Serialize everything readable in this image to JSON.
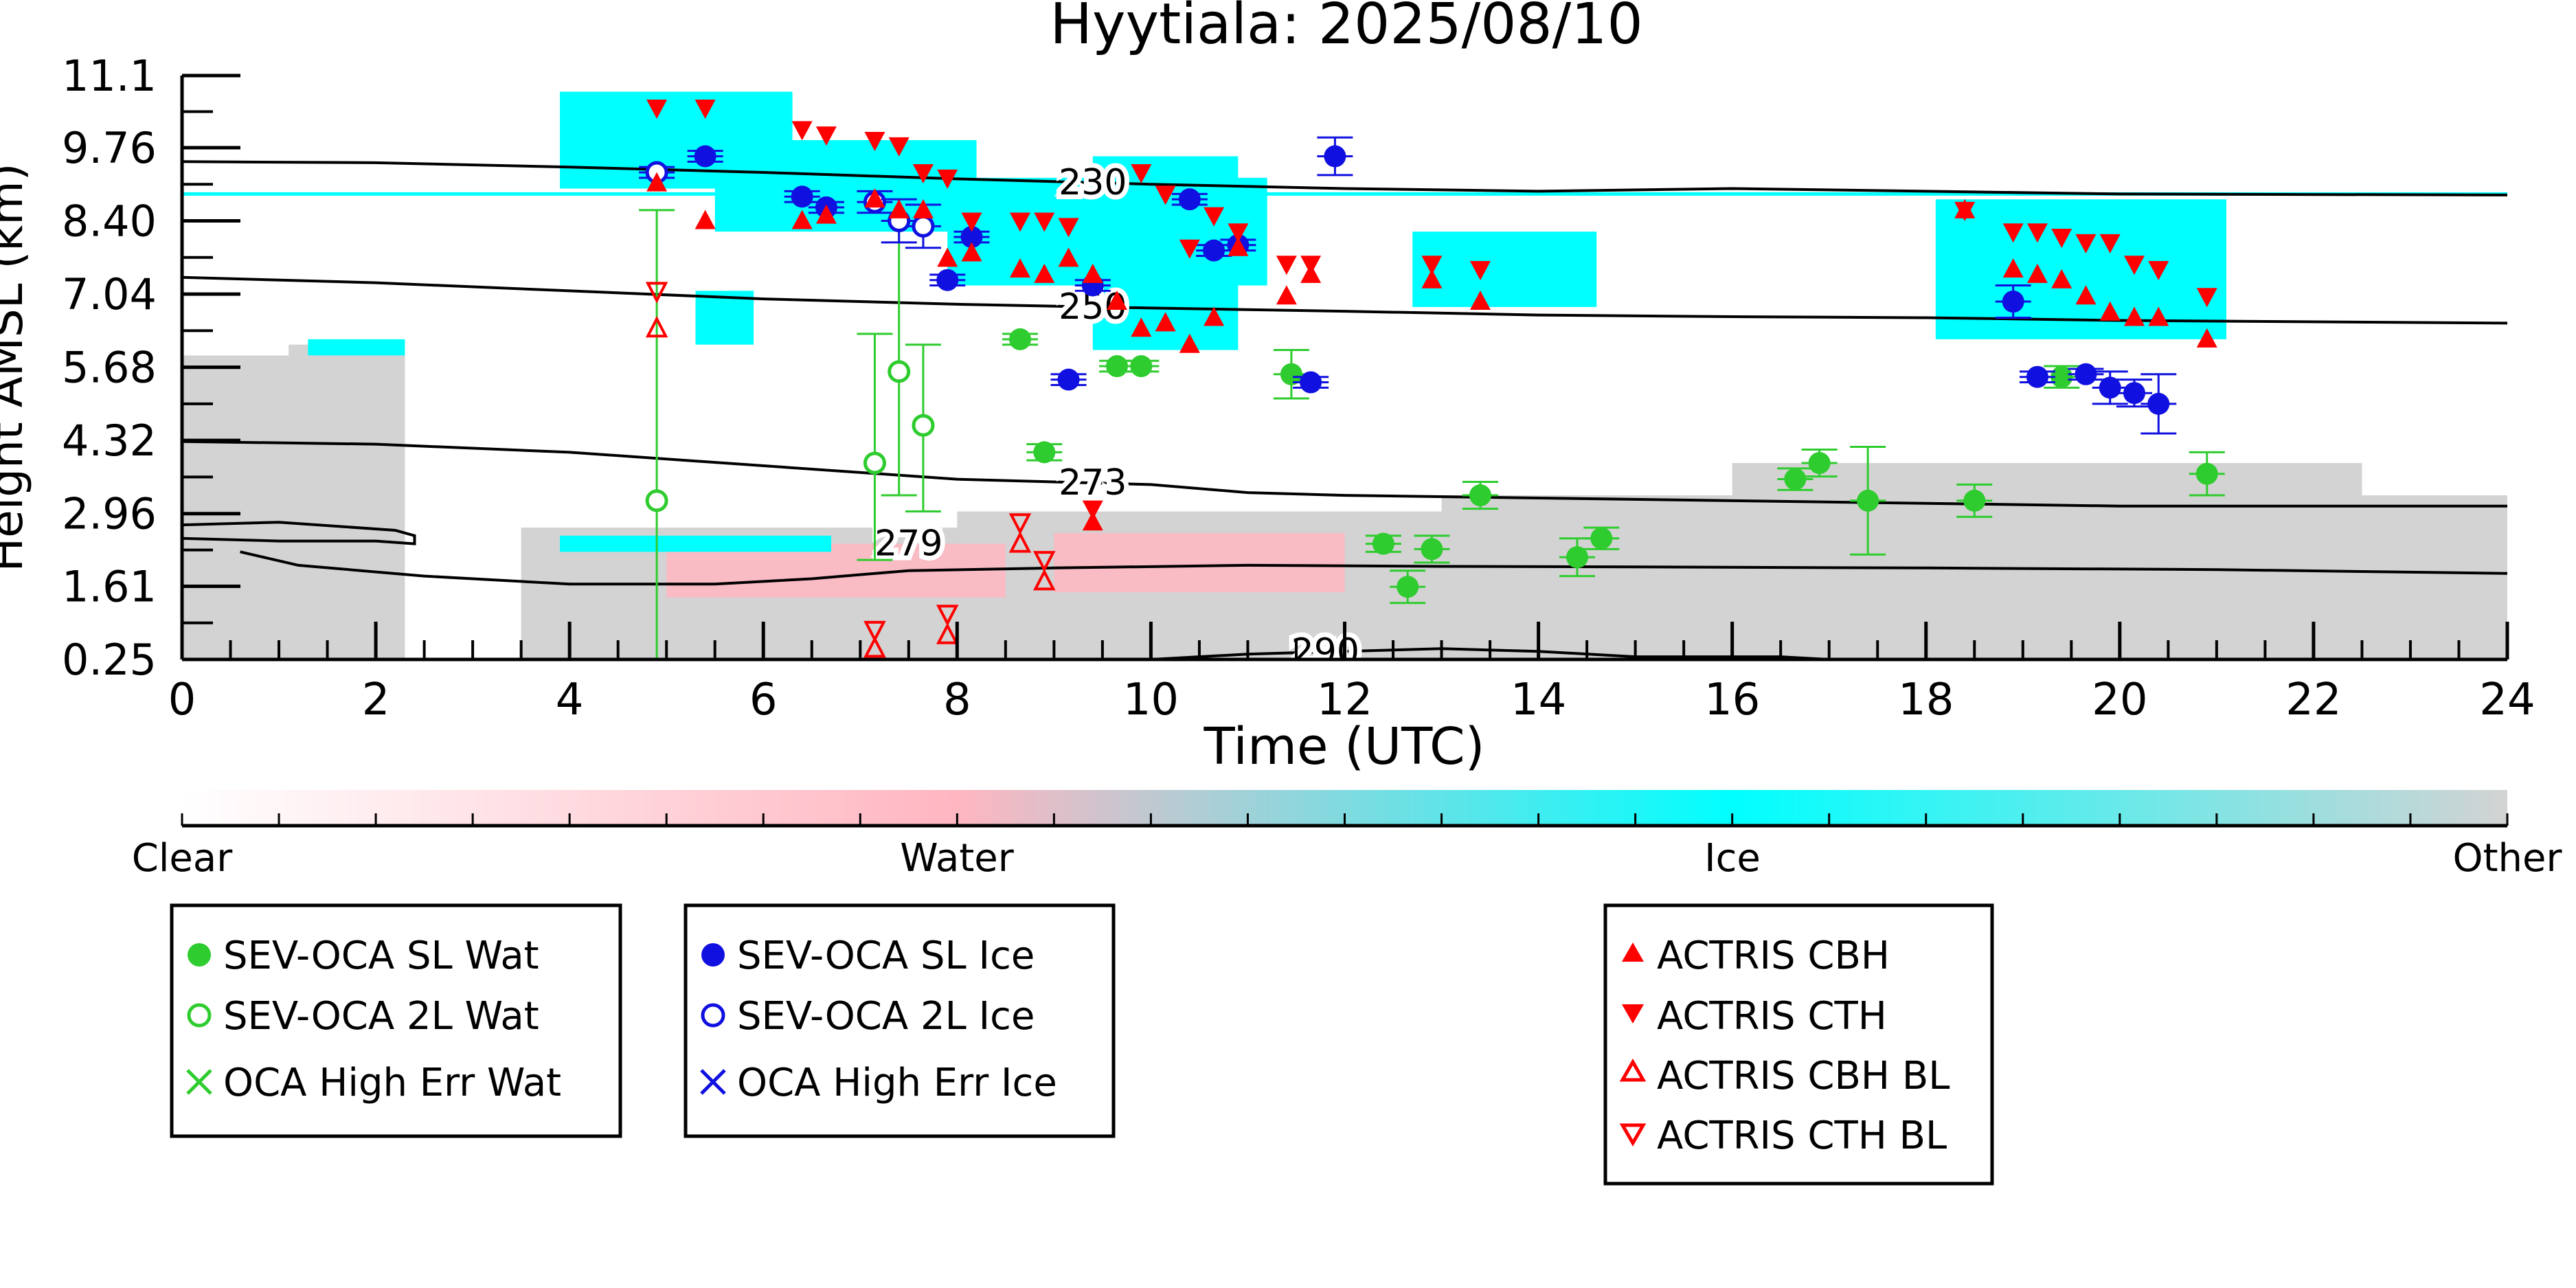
{
  "chart_data": {
    "type": "scatter",
    "title": "Hyytiala: 2025/08/10",
    "xlabel": "Time (UTC)",
    "ylabel": "Height AMSL (km)",
    "xlim": [
      0,
      24
    ],
    "ylim": [
      0.25,
      11.1
    ],
    "xticks": [
      "0",
      "2",
      "4",
      "6",
      "8",
      "10",
      "12",
      "14",
      "16",
      "18",
      "20",
      "22",
      "24"
    ],
    "yticks": [
      "0.25",
      "1.61",
      "2.96",
      "4.32",
      "5.68",
      "7.04",
      "8.40",
      "9.76",
      "11.1"
    ],
    "colorbar": {
      "labels": [
        "Clear",
        "Water",
        "Ice",
        "Other"
      ],
      "colors": {
        "clear": "#ffffff",
        "water": "#ffb6c1",
        "ice": "#00ffff",
        "other": "#d3d3d3"
      }
    },
    "background_regions": [
      {
        "class": "Other",
        "t0": 0.0,
        "t1": 2.3,
        "h0": 0.25,
        "h1": 5.9
      },
      {
        "class": "Other",
        "t0": 1.1,
        "t1": 2.3,
        "h0": 2.9,
        "h1": 6.1
      },
      {
        "class": "Ice",
        "t0": 1.3,
        "t1": 2.3,
        "h0": 5.9,
        "h1": 6.2
      },
      {
        "class": "Other",
        "t0": 3.5,
        "t1": 21.0,
        "h0": 0.25,
        "h1": 2.7
      },
      {
        "class": "Other",
        "t0": 8.0,
        "t1": 13.0,
        "h0": 0.25,
        "h1": 3.0
      },
      {
        "class": "Other",
        "t0": 13.0,
        "t1": 24.0,
        "h0": 0.25,
        "h1": 3.3
      },
      {
        "class": "Other",
        "t0": 16.0,
        "t1": 22.5,
        "h0": 2.0,
        "h1": 3.9
      },
      {
        "class": "Water",
        "t0": 5.0,
        "t1": 8.5,
        "h0": 1.4,
        "h1": 2.4
      },
      {
        "class": "Water",
        "t0": 9.0,
        "t1": 12.0,
        "h0": 1.5,
        "h1": 2.6
      },
      {
        "class": "Ice",
        "t0": 3.9,
        "t1": 6.7,
        "h0": 2.25,
        "h1": 2.55
      },
      {
        "class": "Ice",
        "t0": 3.9,
        "t1": 6.3,
        "h0": 9.0,
        "h1": 10.8
      },
      {
        "class": "Ice",
        "t0": 5.5,
        "t1": 8.2,
        "h0": 8.2,
        "h1": 9.9
      },
      {
        "class": "Ice",
        "t0": 7.9,
        "t1": 11.2,
        "h0": 7.2,
        "h1": 9.2
      },
      {
        "class": "Ice",
        "t0": 9.4,
        "t1": 10.9,
        "h0": 6.0,
        "h1": 9.6
      },
      {
        "class": "Ice",
        "t0": 5.3,
        "t1": 5.9,
        "h0": 6.1,
        "h1": 7.1
      },
      {
        "class": "Ice",
        "t0": 12.7,
        "t1": 14.6,
        "h0": 6.8,
        "h1": 8.2
      },
      {
        "class": "Ice",
        "t0": 18.1,
        "t1": 21.1,
        "h0": 6.2,
        "h1": 8.8
      }
    ],
    "ice_line": {
      "t0": 0.0,
      "t1": 24.0,
      "h": 8.9
    },
    "contours": [
      {
        "label": "230",
        "label_x": 9.4,
        "points": [
          [
            0,
            9.5
          ],
          [
            2,
            9.48
          ],
          [
            4,
            9.4
          ],
          [
            6,
            9.3
          ],
          [
            8,
            9.18
          ],
          [
            10,
            9.08
          ],
          [
            12,
            9.0
          ],
          [
            14,
            8.95
          ],
          [
            16,
            9.0
          ],
          [
            18,
            8.95
          ],
          [
            20,
            8.9
          ],
          [
            24,
            8.88
          ]
        ]
      },
      {
        "label": "250",
        "label_x": 9.4,
        "points": [
          [
            0,
            7.35
          ],
          [
            2,
            7.25
          ],
          [
            4,
            7.1
          ],
          [
            6,
            6.95
          ],
          [
            8,
            6.85
          ],
          [
            10,
            6.78
          ],
          [
            12,
            6.72
          ],
          [
            14,
            6.65
          ],
          [
            16,
            6.62
          ],
          [
            18,
            6.6
          ],
          [
            20,
            6.55
          ],
          [
            24,
            6.5
          ]
        ]
      },
      {
        "label": "273",
        "label_x": 9.4,
        "points": [
          [
            0,
            4.3
          ],
          [
            2,
            4.25
          ],
          [
            4,
            4.1
          ],
          [
            6,
            3.85
          ],
          [
            8,
            3.6
          ],
          [
            10,
            3.5
          ],
          [
            11,
            3.35
          ],
          [
            12,
            3.3
          ],
          [
            14,
            3.25
          ],
          [
            16,
            3.2
          ],
          [
            18,
            3.15
          ],
          [
            20,
            3.1
          ],
          [
            24,
            3.1
          ]
        ]
      },
      {
        "label": "279",
        "label_x": 7.5,
        "points": [
          [
            0,
            2.5
          ],
          [
            1,
            2.45
          ],
          [
            2,
            2.45
          ],
          [
            2.4,
            2.4
          ],
          [
            2.4,
            2.55
          ],
          [
            2.2,
            2.65
          ],
          [
            1.0,
            2.8
          ],
          [
            0,
            2.75
          ]
        ]
      },
      {
        "label": "",
        "label_x": 0,
        "points": [
          [
            0.6,
            2.25
          ],
          [
            1.2,
            2.0
          ],
          [
            2.5,
            1.8
          ],
          [
            4,
            1.65
          ],
          [
            5.5,
            1.65
          ],
          [
            6.5,
            1.75
          ],
          [
            7.5,
            1.9
          ],
          [
            9,
            1.95
          ],
          [
            11,
            2.0
          ],
          [
            13,
            1.98
          ],
          [
            15,
            1.97
          ],
          [
            18,
            1.95
          ],
          [
            21,
            1.92
          ],
          [
            24,
            1.85
          ]
        ]
      },
      {
        "label": "290",
        "label_x": 11.8,
        "points": [
          [
            10,
            0.25
          ],
          [
            11,
            0.35
          ],
          [
            12,
            0.4
          ],
          [
            13,
            0.45
          ],
          [
            14,
            0.4
          ],
          [
            15,
            0.3
          ],
          [
            16.5,
            0.3
          ],
          [
            17,
            0.25
          ]
        ]
      }
    ],
    "series": [
      {
        "name": "SEV-OCA SL Wat",
        "marker": "filled-circle",
        "color": "#2ecc2e",
        "points": [
          {
            "x": 8.65,
            "y": 6.2,
            "err": 0.1
          },
          {
            "x": 8.9,
            "y": 4.1,
            "err": 0.15
          },
          {
            "x": 9.65,
            "y": 5.7,
            "err": 0.1
          },
          {
            "x": 9.9,
            "y": 5.7,
            "err": 0.1
          },
          {
            "x": 11.45,
            "y": 5.55,
            "err": 0.45
          },
          {
            "x": 12.4,
            "y": 2.4,
            "err": 0.15
          },
          {
            "x": 12.65,
            "y": 1.6,
            "err": 0.3
          },
          {
            "x": 12.9,
            "y": 2.3,
            "err": 0.25
          },
          {
            "x": 13.4,
            "y": 3.3,
            "err": 0.25
          },
          {
            "x": 14.4,
            "y": 2.15,
            "err": 0.35
          },
          {
            "x": 14.65,
            "y": 2.5,
            "err": 0.2
          },
          {
            "x": 16.65,
            "y": 3.6,
            "err": 0.2
          },
          {
            "x": 16.9,
            "y": 3.9,
            "err": 0.25
          },
          {
            "x": 17.4,
            "y": 3.2,
            "err": 1.0
          },
          {
            "x": 18.5,
            "y": 3.2,
            "err": 0.3
          },
          {
            "x": 19.4,
            "y": 5.5,
            "err": 0.2
          },
          {
            "x": 20.9,
            "y": 3.7,
            "err": 0.4
          }
        ]
      },
      {
        "name": "SEV-OCA 2L Wat",
        "marker": "open-circle",
        "color": "#2ecc2e",
        "points": [
          {
            "x": 4.9,
            "y": 3.2,
            "low": 0.25,
            "high": 8.6
          },
          {
            "x": 7.15,
            "y": 3.9,
            "low": 2.1,
            "high": 6.3
          },
          {
            "x": 7.4,
            "y": 5.6,
            "low": 3.3,
            "high": 8.4
          },
          {
            "x": 7.65,
            "y": 4.6,
            "low": 3.0,
            "high": 6.1
          }
        ]
      },
      {
        "name": "OCA High Err Wat",
        "marker": "x",
        "color": "#2ecc2e",
        "points": []
      },
      {
        "name": "SEV-OCA SL Ice",
        "marker": "filled-circle",
        "color": "#1010e0",
        "points": [
          {
            "x": 5.4,
            "y": 9.6,
            "err": 0.1
          },
          {
            "x": 6.4,
            "y": 8.85,
            "err": 0.1
          },
          {
            "x": 6.65,
            "y": 8.65,
            "err": 0.1
          },
          {
            "x": 7.9,
            "y": 7.3,
            "err": 0.1
          },
          {
            "x": 8.15,
            "y": 8.1,
            "err": 0.1
          },
          {
            "x": 9.15,
            "y": 5.45,
            "err": 0.1
          },
          {
            "x": 9.4,
            "y": 7.2,
            "err": 0.1
          },
          {
            "x": 10.4,
            "y": 8.8,
            "err": 0.1
          },
          {
            "x": 10.65,
            "y": 7.85,
            "err": 0.1
          },
          {
            "x": 10.9,
            "y": 7.95,
            "err": 0.1
          },
          {
            "x": 11.65,
            "y": 5.4,
            "err": 0.1
          },
          {
            "x": 11.9,
            "y": 9.6,
            "err": 0.35
          },
          {
            "x": 18.9,
            "y": 6.9,
            "err": 0.3
          },
          {
            "x": 19.15,
            "y": 5.5,
            "err": 0.1
          },
          {
            "x": 19.65,
            "y": 5.55,
            "err": 0.1
          },
          {
            "x": 19.9,
            "y": 5.3,
            "err": 0.3
          },
          {
            "x": 20.15,
            "y": 5.2,
            "err": 0.25
          },
          {
            "x": 20.4,
            "y": 5.0,
            "err": 0.55
          }
        ]
      },
      {
        "name": "SEV-OCA 2L Ice",
        "marker": "open-circle",
        "color": "#1010e0",
        "points": [
          {
            "x": 4.9,
            "y": 9.3,
            "err": 0.1
          },
          {
            "x": 7.15,
            "y": 8.75,
            "err": 0.2
          },
          {
            "x": 7.4,
            "y": 8.4,
            "err": 0.4
          },
          {
            "x": 7.65,
            "y": 8.3,
            "err": 0.4
          }
        ]
      },
      {
        "name": "OCA High Err Ice",
        "marker": "x",
        "color": "#1010e0",
        "points": []
      },
      {
        "name": "ACTRIS CBH",
        "marker": "filled-triangle-up",
        "color": "#ff0000",
        "points": [
          {
            "x": 4.9,
            "y": 9.1
          },
          {
            "x": 5.4,
            "y": 8.4
          },
          {
            "x": 6.4,
            "y": 8.4
          },
          {
            "x": 6.65,
            "y": 8.5
          },
          {
            "x": 7.15,
            "y": 8.8
          },
          {
            "x": 7.4,
            "y": 8.6
          },
          {
            "x": 7.65,
            "y": 8.6
          },
          {
            "x": 7.9,
            "y": 7.7
          },
          {
            "x": 8.15,
            "y": 7.8
          },
          {
            "x": 8.65,
            "y": 7.5
          },
          {
            "x": 8.9,
            "y": 7.4
          },
          {
            "x": 9.15,
            "y": 7.7
          },
          {
            "x": 9.4,
            "y": 7.4
          },
          {
            "x": 9.65,
            "y": 6.9
          },
          {
            "x": 9.9,
            "y": 6.4
          },
          {
            "x": 10.15,
            "y": 6.5
          },
          {
            "x": 10.4,
            "y": 6.1
          },
          {
            "x": 10.65,
            "y": 6.6
          },
          {
            "x": 10.9,
            "y": 7.9
          },
          {
            "x": 11.4,
            "y": 7.0
          },
          {
            "x": 11.65,
            "y": 7.4
          },
          {
            "x": 12.9,
            "y": 7.3
          },
          {
            "x": 13.4,
            "y": 6.9
          },
          {
            "x": 18.4,
            "y": 8.6
          },
          {
            "x": 18.9,
            "y": 7.5
          },
          {
            "x": 19.15,
            "y": 7.4
          },
          {
            "x": 19.4,
            "y": 7.3
          },
          {
            "x": 19.65,
            "y": 7.0
          },
          {
            "x": 19.9,
            "y": 6.7
          },
          {
            "x": 20.15,
            "y": 6.6
          },
          {
            "x": 20.4,
            "y": 6.6
          },
          {
            "x": 20.9,
            "y": 6.2
          },
          {
            "x": 9.4,
            "y": 2.8
          }
        ]
      },
      {
        "name": "ACTRIS CTH",
        "marker": "filled-triangle-down",
        "color": "#ff0000",
        "points": [
          {
            "x": 4.9,
            "y": 10.5
          },
          {
            "x": 5.4,
            "y": 10.5
          },
          {
            "x": 6.4,
            "y": 10.1
          },
          {
            "x": 6.65,
            "y": 10.0
          },
          {
            "x": 7.15,
            "y": 9.9
          },
          {
            "x": 7.4,
            "y": 9.8
          },
          {
            "x": 7.65,
            "y": 9.3
          },
          {
            "x": 7.9,
            "y": 9.2
          },
          {
            "x": 8.15,
            "y": 8.4
          },
          {
            "x": 8.65,
            "y": 8.4
          },
          {
            "x": 8.9,
            "y": 8.4
          },
          {
            "x": 9.15,
            "y": 8.3
          },
          {
            "x": 9.9,
            "y": 9.3
          },
          {
            "x": 10.15,
            "y": 8.9
          },
          {
            "x": 10.4,
            "y": 7.9
          },
          {
            "x": 10.65,
            "y": 8.5
          },
          {
            "x": 10.9,
            "y": 8.2
          },
          {
            "x": 11.4,
            "y": 7.6
          },
          {
            "x": 11.65,
            "y": 7.6
          },
          {
            "x": 12.9,
            "y": 7.6
          },
          {
            "x": 13.4,
            "y": 7.5
          },
          {
            "x": 18.4,
            "y": 8.6
          },
          {
            "x": 18.9,
            "y": 8.2
          },
          {
            "x": 19.15,
            "y": 8.2
          },
          {
            "x": 19.4,
            "y": 8.1
          },
          {
            "x": 19.65,
            "y": 8.0
          },
          {
            "x": 19.9,
            "y": 8.0
          },
          {
            "x": 20.15,
            "y": 7.6
          },
          {
            "x": 20.4,
            "y": 7.5
          },
          {
            "x": 20.9,
            "y": 7.0
          },
          {
            "x": 9.4,
            "y": 3.05
          }
        ]
      },
      {
        "name": "ACTRIS CBH BL",
        "marker": "open-triangle-up",
        "color": "#ff0000",
        "points": [
          {
            "x": 4.9,
            "y": 6.4
          },
          {
            "x": 7.15,
            "y": 0.45
          },
          {
            "x": 7.9,
            "y": 0.7
          },
          {
            "x": 8.65,
            "y": 2.4
          },
          {
            "x": 8.9,
            "y": 1.7
          }
        ]
      },
      {
        "name": "ACTRIS CTH BL",
        "marker": "open-triangle-down",
        "color": "#ff0000",
        "points": [
          {
            "x": 4.9,
            "y": 7.1
          },
          {
            "x": 7.15,
            "y": 0.8
          },
          {
            "x": 7.9,
            "y": 1.1
          },
          {
            "x": 8.65,
            "y": 2.8
          },
          {
            "x": 8.9,
            "y": 2.1
          }
        ]
      }
    ]
  }
}
